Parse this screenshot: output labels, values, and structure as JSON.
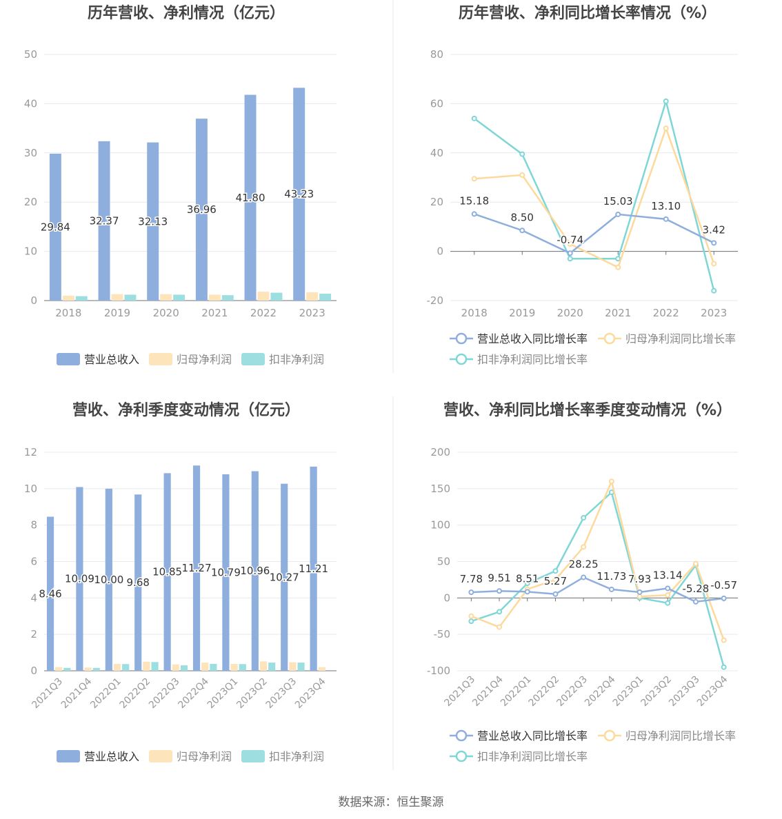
{
  "footer": {
    "source": "数据来源：恒生聚源"
  },
  "colors": {
    "revenue": "#8eaedd",
    "net_profit": "#fde4bb",
    "deducted": "#9ddfe0",
    "revenue_line": "#8eaedd",
    "net_line": "#fdd99b",
    "deducted_line": "#7fd6d6",
    "grid": "#e6e9f0",
    "axis_text": "#999999",
    "title_text": "#444444",
    "divider": "#e8e8e8"
  },
  "chart_data": [
    {
      "type": "bar",
      "title": "历年营收、净利情况（亿元）",
      "categories": [
        "2018",
        "2019",
        "2020",
        "2021",
        "2022",
        "2023"
      ],
      "ylim": [
        0,
        50
      ],
      "yticks": [
        0,
        10,
        20,
        30,
        40,
        50
      ],
      "grid": true,
      "legend_position": "bottom",
      "series": [
        {
          "name": "营业总收入",
          "values": [
            29.84,
            32.37,
            32.13,
            36.96,
            41.8,
            43.23
          ],
          "labels": [
            "29.84",
            "32.37",
            "32.13",
            "36.96",
            "41.80",
            "43.23"
          ]
        },
        {
          "name": "归母净利润",
          "values": [
            1.0,
            1.3,
            1.3,
            1.2,
            1.8,
            1.7
          ]
        },
        {
          "name": "扣非净利润",
          "values": [
            0.9,
            1.2,
            1.2,
            1.1,
            1.6,
            1.4
          ]
        }
      ]
    },
    {
      "type": "line",
      "title": "历年营收、净利同比增长率情况（%）",
      "categories": [
        "2018",
        "2019",
        "2020",
        "2021",
        "2022",
        "2023"
      ],
      "ylim": [
        -20,
        80
      ],
      "yticks": [
        -20,
        0,
        20,
        40,
        60,
        80
      ],
      "grid": true,
      "legend_position": "bottom",
      "series": [
        {
          "name": "营业总收入同比增长率",
          "values": [
            15.18,
            8.5,
            -0.74,
            15.03,
            13.1,
            3.42
          ],
          "labels": [
            "15.18",
            "8.50",
            "-0.74",
            "15.03",
            "13.10",
            "3.42"
          ]
        },
        {
          "name": "归母净利润同比增长率",
          "values": [
            29.5,
            31.0,
            3.0,
            -6.5,
            50.0,
            -5.0
          ]
        },
        {
          "name": "扣非净利润同比增长率",
          "values": [
            54.0,
            39.5,
            -3.0,
            -3.0,
            61.0,
            -16.0
          ]
        }
      ]
    },
    {
      "type": "bar",
      "title": "营收、净利季度变动情况（亿元）",
      "categories": [
        "2021Q3",
        "2021Q4",
        "2022Q1",
        "2022Q2",
        "2022Q3",
        "2022Q4",
        "2023Q1",
        "2023Q2",
        "2023Q3",
        "2023Q4"
      ],
      "ylim": [
        0,
        12
      ],
      "yticks": [
        0,
        2,
        4,
        6,
        8,
        10,
        12
      ],
      "grid": true,
      "legend_position": "bottom",
      "series": [
        {
          "name": "营业总收入",
          "values": [
            8.46,
            10.09,
            10.0,
            9.68,
            10.85,
            11.27,
            10.79,
            10.96,
            10.27,
            11.21
          ],
          "labels": [
            "8.46",
            "10.09",
            "10.00",
            "9.68",
            "10.85",
            "11.27",
            "10.79",
            "10.96",
            "10.27",
            "11.21"
          ]
        },
        {
          "name": "归母净利润",
          "values": [
            0.2,
            0.18,
            0.38,
            0.5,
            0.35,
            0.45,
            0.38,
            0.52,
            0.47,
            0.2
          ]
        },
        {
          "name": "扣非净利润",
          "values": [
            0.16,
            0.16,
            0.37,
            0.48,
            0.3,
            0.38,
            0.37,
            0.45,
            0.45,
            0.0
          ]
        }
      ]
    },
    {
      "type": "line",
      "title": "营收、净利同比增长率季度变动情况（%）",
      "categories": [
        "2021Q3",
        "2021Q4",
        "2022Q1",
        "2022Q2",
        "2022Q3",
        "2022Q4",
        "2023Q1",
        "2023Q2",
        "2023Q3",
        "2023Q4"
      ],
      "ylim": [
        -100,
        200
      ],
      "yticks": [
        -100,
        -50,
        0,
        50,
        100,
        150,
        200
      ],
      "grid": true,
      "legend_position": "bottom",
      "series": [
        {
          "name": "营业总收入同比增长率",
          "values": [
            7.78,
            9.51,
            8.51,
            5.27,
            28.25,
            11.73,
            7.93,
            13.14,
            -5.28,
            -0.57
          ],
          "labels": [
            "7.78",
            "9.51",
            "8.51",
            "5.27",
            "28.25",
            "11.73",
            "7.93",
            "13.14",
            "-5.28",
            "-0.57"
          ]
        },
        {
          "name": "归母净利润同比增长率",
          "values": [
            -25,
            -40,
            12,
            25,
            70,
            160,
            2,
            4,
            47,
            -58
          ]
        },
        {
          "name": "扣非净利润同比增长率",
          "values": [
            -32,
            -19,
            20,
            37,
            110,
            145,
            0,
            -7,
            45,
            -95
          ]
        }
      ]
    }
  ]
}
